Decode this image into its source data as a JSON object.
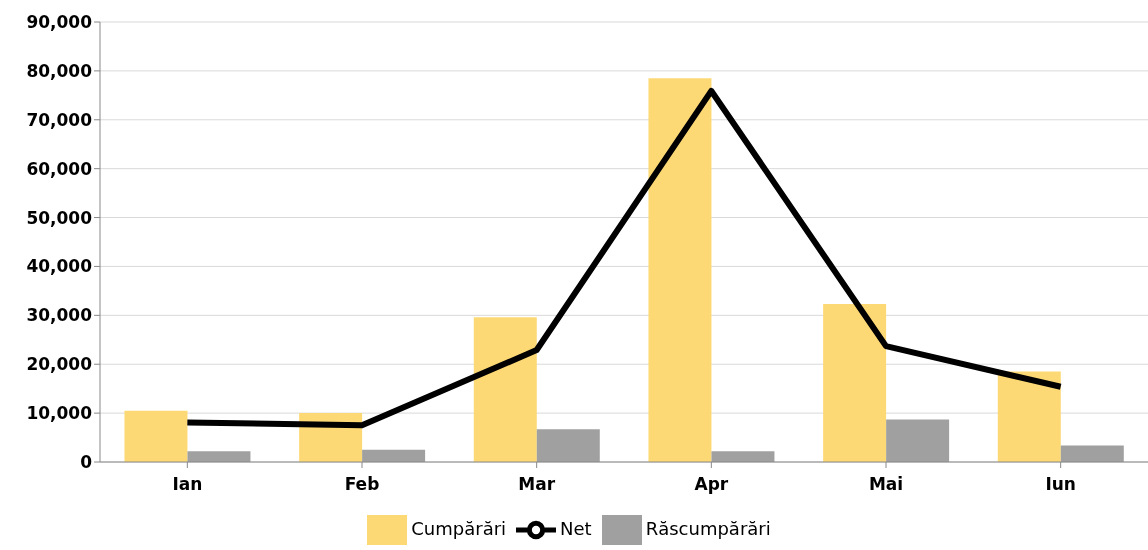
{
  "chart_data": {
    "type": "bar",
    "categories": [
      "Ian",
      "Feb",
      "Mar",
      "Apr",
      "Mai",
      "Iun"
    ],
    "series": [
      {
        "name": "Cumpărări",
        "color": "#fdd975",
        "values": [
          10500,
          10000,
          29600,
          78500,
          32300,
          18500
        ]
      },
      {
        "name": "Răscumpărări",
        "color": "#a0a0a0",
        "values": [
          2200,
          2500,
          6700,
          2200,
          8700,
          3400
        ]
      },
      {
        "name": "Net",
        "type": "line",
        "color": "#000000",
        "values": [
          8100,
          7500,
          22900,
          75900,
          23700,
          15400
        ]
      }
    ],
    "ylim": [
      0,
      90000
    ],
    "yticks": [
      {
        "value": 0,
        "label": "0"
      },
      {
        "value": 10000,
        "label": "10,000"
      },
      {
        "value": 20000,
        "label": "20,000"
      },
      {
        "value": 30000,
        "label": "30,000"
      },
      {
        "value": 40000,
        "label": "40,000"
      },
      {
        "value": 50000,
        "label": "50,000"
      },
      {
        "value": 60000,
        "label": "60,000"
      },
      {
        "value": 70000,
        "label": "70,000"
      },
      {
        "value": 80000,
        "label": "80,000"
      },
      {
        "value": 90000,
        "label": "90,000"
      }
    ],
    "grid": "y",
    "legend": "bottom",
    "marker": "none"
  }
}
